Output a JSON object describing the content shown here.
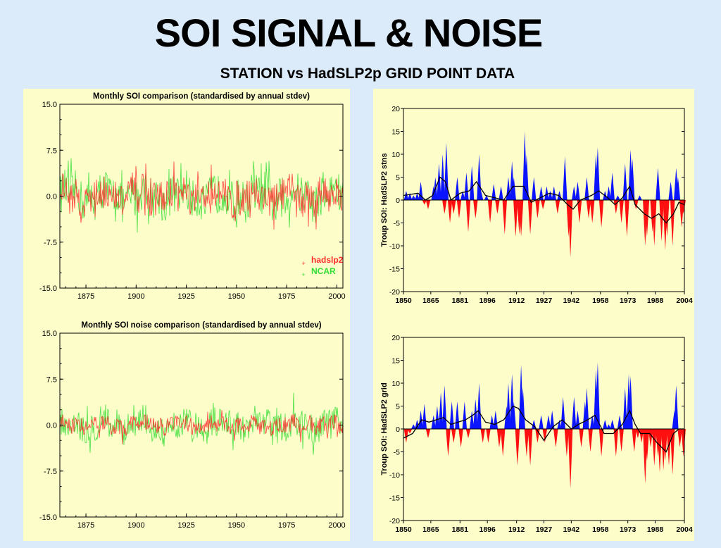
{
  "slide": {
    "title": "SOI SIGNAL & NOISE",
    "subtitle": "STATION vs HadSLP2p GRID POINT DATA"
  },
  "colors": {
    "background": "#dcebfa",
    "panel": "#fdfdc9",
    "hadslp2": "#ff2a2a",
    "ncar": "#33dd33",
    "positive": "#0a14ff",
    "negative": "#ff1010",
    "smooth": "#000000"
  },
  "chart_data": [
    {
      "id": "monthly-soi-comparison",
      "type": "line",
      "title": "Monthly SOI comparison (standardised by annual stdev)",
      "xlim": [
        1862,
        2003
      ],
      "ylim": [
        -15,
        15
      ],
      "yticks": [
        "15.0",
        "7.5",
        "0.0",
        "-7.5",
        "-15.0"
      ],
      "xticks": [
        "1875",
        "1900",
        "1925",
        "1950",
        "1975",
        "2000"
      ],
      "legend": {
        "position": "bottom-right",
        "entries": [
          "hadslp2",
          "NCAR"
        ]
      },
      "series": [
        {
          "name": "hadslp2",
          "color": "#ff2a2a",
          "amplitude": 5
        },
        {
          "name": "NCAR",
          "color": "#33dd33",
          "amplitude": 6
        }
      ]
    },
    {
      "id": "monthly-soi-noise-comparison",
      "type": "line",
      "title": "Monthly SOI noise comparison (standardised by annual stdev)",
      "xlim": [
        1862,
        2003
      ],
      "ylim": [
        -15,
        15
      ],
      "yticks": [
        "15.0",
        "7.5",
        "0.0",
        "-7.5",
        "-15.0"
      ],
      "xticks": [
        "1875",
        "1900",
        "1925",
        "1950",
        "1975",
        "2000"
      ],
      "series": [
        {
          "name": "hadslp2",
          "color": "#ff2a2a",
          "amplitude": 2.5
        },
        {
          "name": "NCAR",
          "color": "#33dd33",
          "amplitude": 4.5
        }
      ]
    },
    {
      "id": "troup-soi-stns",
      "type": "area",
      "ylabel": "Troup SOI: HadSLP2 stns",
      "xlim": [
        1850,
        2004
      ],
      "ylim": [
        -20,
        20
      ],
      "yticks": [
        "20",
        "15",
        "10",
        "5",
        "0",
        "-5",
        "-10",
        "-15",
        "-20"
      ],
      "xticks": [
        "1850",
        "1865",
        "1881",
        "1896",
        "1912",
        "1927",
        "1942",
        "1958",
        "1973",
        "1988",
        "2004"
      ],
      "peaks": [
        [
          1851,
          2
        ],
        [
          1853,
          1.5
        ],
        [
          1855,
          1
        ],
        [
          1857,
          1.5
        ],
        [
          1859,
          4
        ],
        [
          1861,
          -1
        ],
        [
          1863,
          -2
        ],
        [
          1866,
          3
        ],
        [
          1867,
          5
        ],
        [
          1869,
          8
        ],
        [
          1871,
          10
        ],
        [
          1872,
          -3
        ],
        [
          1873,
          12.5
        ],
        [
          1875,
          -5
        ],
        [
          1877,
          -3
        ],
        [
          1879,
          5
        ],
        [
          1880,
          -4
        ],
        [
          1882,
          2
        ],
        [
          1884,
          6
        ],
        [
          1885,
          -7
        ],
        [
          1887,
          7.5
        ],
        [
          1889,
          -4
        ],
        [
          1891,
          10
        ],
        [
          1892,
          2
        ],
        [
          1895,
          1
        ],
        [
          1897,
          -5
        ],
        [
          1899,
          3.5
        ],
        [
          1901,
          -3
        ],
        [
          1903,
          3
        ],
        [
          1905,
          -7.5
        ],
        [
          1907,
          5
        ],
        [
          1909,
          8.5
        ],
        [
          1910,
          5
        ],
        [
          1911,
          -8
        ],
        [
          1913,
          -7.5
        ],
        [
          1914,
          -8
        ],
        [
          1916,
          15
        ],
        [
          1917,
          10
        ],
        [
          1919,
          -7.5
        ],
        [
          1921,
          5
        ],
        [
          1923,
          -4
        ],
        [
          1925,
          3
        ],
        [
          1926,
          -2
        ],
        [
          1928,
          3
        ],
        [
          1930,
          2
        ],
        [
          1932,
          3
        ],
        [
          1934,
          -3
        ],
        [
          1935,
          2
        ],
        [
          1938,
          9.5
        ],
        [
          1940,
          -8
        ],
        [
          1941,
          -12.5
        ],
        [
          1943,
          3
        ],
        [
          1945,
          4
        ],
        [
          1946,
          -5
        ],
        [
          1950,
          5
        ],
        [
          1951,
          -4
        ],
        [
          1953,
          -5
        ],
        [
          1955,
          10
        ],
        [
          1956,
          11.5
        ],
        [
          1958,
          -6
        ],
        [
          1960,
          2
        ],
        [
          1962,
          3
        ],
        [
          1964,
          6
        ],
        [
          1966,
          -3
        ],
        [
          1967,
          1
        ],
        [
          1969,
          -5
        ],
        [
          1971,
          8
        ],
        [
          1972,
          -8
        ],
        [
          1974,
          11
        ],
        [
          1975,
          9
        ],
        [
          1977,
          -2
        ],
        [
          1979,
          1
        ],
        [
          1982,
          -10
        ],
        [
          1983,
          -8
        ],
        [
          1986,
          -7
        ],
        [
          1987,
          -10
        ],
        [
          1989,
          7
        ],
        [
          1991,
          -9
        ],
        [
          1993,
          -11
        ],
        [
          1994,
          -8
        ],
        [
          1996,
          4
        ],
        [
          1997,
          -10
        ],
        [
          1999,
          7
        ],
        [
          2000,
          5
        ],
        [
          2002,
          -6
        ],
        [
          2003,
          -3
        ]
      ],
      "smooth": [
        [
          1850,
          1
        ],
        [
          1858,
          1.5
        ],
        [
          1862,
          0
        ],
        [
          1866,
          1
        ],
        [
          1870,
          5
        ],
        [
          1873,
          4
        ],
        [
          1876,
          0
        ],
        [
          1881,
          1.5
        ],
        [
          1886,
          2
        ],
        [
          1890,
          4
        ],
        [
          1895,
          1
        ],
        [
          1900,
          0.5
        ],
        [
          1905,
          0
        ],
        [
          1910,
          3
        ],
        [
          1913,
          3
        ],
        [
          1916,
          3
        ],
        [
          1920,
          -0.5
        ],
        [
          1925,
          0.5
        ],
        [
          1930,
          1.5
        ],
        [
          1935,
          1
        ],
        [
          1940,
          -1
        ],
        [
          1943,
          -2
        ],
        [
          1947,
          0
        ],
        [
          1953,
          1
        ],
        [
          1957,
          2
        ],
        [
          1962,
          0.5
        ],
        [
          1966,
          -1
        ],
        [
          1970,
          0.5
        ],
        [
          1974,
          3
        ],
        [
          1977,
          -1
        ],
        [
          1982,
          -3
        ],
        [
          1986,
          -4
        ],
        [
          1990,
          -3
        ],
        [
          1994,
          -5
        ],
        [
          1998,
          -3
        ],
        [
          2001,
          -0.5
        ],
        [
          2004,
          -1
        ]
      ]
    },
    {
      "id": "troup-soi-grid",
      "type": "area",
      "ylabel": "Troup SOI: HadSLP2 grid",
      "xlim": [
        1850,
        2004
      ],
      "ylim": [
        -20,
        20
      ],
      "yticks": [
        "20",
        "15",
        "10",
        "5",
        "0",
        "-5",
        "-10",
        "-15",
        "-20"
      ],
      "xticks": [
        "1850",
        "1865",
        "1881",
        "1896",
        "1912",
        "1927",
        "1942",
        "1958",
        "1973",
        "1988",
        "2004"
      ],
      "peaks": [
        [
          1851,
          -3
        ],
        [
          1853,
          -1
        ],
        [
          1855,
          1
        ],
        [
          1857,
          2
        ],
        [
          1859,
          4
        ],
        [
          1861,
          5.5
        ],
        [
          1863,
          -2
        ],
        [
          1866,
          3
        ],
        [
          1868,
          5
        ],
        [
          1870,
          8
        ],
        [
          1872,
          9.5
        ],
        [
          1874,
          -6
        ],
        [
          1876,
          6
        ],
        [
          1877,
          -3
        ],
        [
          1879,
          6
        ],
        [
          1881,
          -4
        ],
        [
          1883,
          6
        ],
        [
          1885,
          -2
        ],
        [
          1887,
          4
        ],
        [
          1889,
          6.5
        ],
        [
          1891,
          10
        ],
        [
          1893,
          -3
        ],
        [
          1896,
          -3
        ],
        [
          1898,
          3
        ],
        [
          1900,
          4
        ],
        [
          1902,
          -4
        ],
        [
          1904,
          -6
        ],
        [
          1906,
          5
        ],
        [
          1907,
          10
        ],
        [
          1909,
          12
        ],
        [
          1910,
          6
        ],
        [
          1912,
          -8
        ],
        [
          1914,
          14
        ],
        [
          1915,
          9
        ],
        [
          1917,
          -6
        ],
        [
          1919,
          -8
        ],
        [
          1921,
          2
        ],
        [
          1923,
          -3
        ],
        [
          1925,
          3
        ],
        [
          1927,
          -3
        ],
        [
          1929,
          3
        ],
        [
          1931,
          4
        ],
        [
          1933,
          -4
        ],
        [
          1935,
          2
        ],
        [
          1937,
          7
        ],
        [
          1939,
          -6
        ],
        [
          1941,
          -13
        ],
        [
          1943,
          7
        ],
        [
          1945,
          4
        ],
        [
          1947,
          -4
        ],
        [
          1949,
          6
        ],
        [
          1950,
          9
        ],
        [
          1952,
          -5
        ],
        [
          1953,
          3
        ],
        [
          1955,
          13
        ],
        [
          1956,
          14.5
        ],
        [
          1958,
          -6
        ],
        [
          1960,
          2
        ],
        [
          1962,
          1
        ],
        [
          1964,
          2
        ],
        [
          1966,
          -6
        ],
        [
          1968,
          3
        ],
        [
          1969,
          -5
        ],
        [
          1971,
          9
        ],
        [
          1973,
          12
        ],
        [
          1974,
          11.5
        ],
        [
          1976,
          -5
        ],
        [
          1978,
          -2
        ],
        [
          1980,
          -3
        ],
        [
          1982,
          -12
        ],
        [
          1983,
          -7
        ],
        [
          1985,
          -4
        ],
        [
          1987,
          -8
        ],
        [
          1989,
          -6
        ],
        [
          1990,
          -9.5
        ],
        [
          1992,
          -9
        ],
        [
          1993,
          -7
        ],
        [
          1995,
          -8
        ],
        [
          1997,
          -10
        ],
        [
          1998,
          4
        ],
        [
          1999,
          9.5
        ],
        [
          2001,
          -4
        ],
        [
          2003,
          -6
        ]
      ],
      "smooth": [
        [
          1850,
          -2
        ],
        [
          1855,
          -1
        ],
        [
          1860,
          2
        ],
        [
          1864,
          1.5
        ],
        [
          1868,
          2
        ],
        [
          1872,
          2.5
        ],
        [
          1876,
          1
        ],
        [
          1880,
          1.5
        ],
        [
          1884,
          2
        ],
        [
          1888,
          3
        ],
        [
          1891,
          4
        ],
        [
          1895,
          1.5
        ],
        [
          1900,
          1
        ],
        [
          1905,
          2
        ],
        [
          1910,
          5
        ],
        [
          1913,
          4.5
        ],
        [
          1917,
          2
        ],
        [
          1922,
          0.5
        ],
        [
          1927,
          -2.5
        ],
        [
          1932,
          0.5
        ],
        [
          1937,
          2
        ],
        [
          1942,
          0
        ],
        [
          1946,
          1
        ],
        [
          1951,
          2
        ],
        [
          1955,
          3
        ],
        [
          1960,
          -1
        ],
        [
          1965,
          -1
        ],
        [
          1970,
          1
        ],
        [
          1974,
          4
        ],
        [
          1977,
          1
        ],
        [
          1980,
          -1
        ],
        [
          1985,
          -1
        ],
        [
          1989,
          -3
        ],
        [
          1994,
          -5
        ],
        [
          1998,
          -1
        ],
        [
          2001,
          0
        ],
        [
          2004,
          0
        ]
      ]
    }
  ]
}
